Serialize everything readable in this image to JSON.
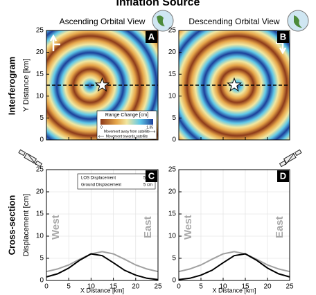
{
  "title": "Inflation Source",
  "row_labels": [
    "Interferogram",
    "Cross-section"
  ],
  "chart_data": [
    {
      "type": "interferogram",
      "title": "Ascending Orbital View",
      "panel": "A",
      "ylabel": "Y Distance [km]",
      "xlim": [
        0,
        25
      ],
      "ylim": [
        0,
        25
      ],
      "xticks": [
        0,
        5,
        10,
        15,
        20,
        25
      ],
      "yticks": [
        0,
        5,
        10,
        15,
        20,
        25
      ],
      "source": [
        12.5,
        12.5
      ],
      "profile_y": 12.5,
      "colorbar": {
        "title": "Range Change [cm]",
        "ticks": [
          0,
          1.35
        ],
        "labels": [
          "Movement away from satellite",
          "Movement towards satellite"
        ]
      }
    },
    {
      "type": "interferogram",
      "title": "Descending Orbital View",
      "panel": "B",
      "xlim": [
        0,
        25
      ],
      "ylim": [
        0,
        25
      ],
      "xticks": [
        0,
        5,
        10,
        15,
        20,
        25
      ],
      "yticks": [
        0,
        5,
        10,
        15,
        20,
        25
      ],
      "source": [
        12.5,
        12.5
      ],
      "profile_y": 12.5
    },
    {
      "type": "line",
      "panel": "C",
      "ylabel": "Displacement [cm]",
      "xlabel": "X Distance [km]",
      "xlim": [
        0,
        25
      ],
      "ylim": [
        0,
        25
      ],
      "xticks": [
        0,
        5,
        10,
        15,
        20,
        25
      ],
      "yticks": [
        0,
        5,
        10,
        15,
        20,
        25
      ],
      "west": "West",
      "east": "East",
      "legend": [
        "LOS Displacement",
        "5 cm",
        "Ground Displacement",
        "5 cm"
      ],
      "x": [
        0,
        2.5,
        5,
        7.5,
        10,
        12.5,
        15,
        17.5,
        20,
        22.5,
        25
      ],
      "series": [
        {
          "name": "Ground Displacement",
          "color": "#a0a0a0",
          "values": [
            2,
            2.6,
            3.5,
            4.8,
            6,
            6.5,
            6,
            4.8,
            3.5,
            2.6,
            2
          ]
        },
        {
          "name": "LOS Displacement",
          "color": "#000000",
          "values": [
            0.8,
            1.5,
            2.8,
            4.6,
            6,
            5.6,
            4,
            2.3,
            1.2,
            0.5,
            0.2
          ]
        }
      ]
    },
    {
      "type": "line",
      "panel": "D",
      "xlabel": "X Distance [km]",
      "xlim": [
        0,
        25
      ],
      "ylim": [
        0,
        25
      ],
      "xticks": [
        0,
        5,
        10,
        15,
        20,
        25
      ],
      "yticks": [
        0,
        5,
        10,
        15,
        20,
        25
      ],
      "west": "West",
      "east": "East",
      "x": [
        0,
        2.5,
        5,
        7.5,
        10,
        12.5,
        15,
        17.5,
        20,
        22.5,
        25
      ],
      "series": [
        {
          "name": "Ground Displacement",
          "color": "#a0a0a0",
          "values": [
            2,
            2.6,
            3.5,
            4.8,
            6,
            6.5,
            6,
            4.8,
            3.5,
            2.6,
            2
          ]
        },
        {
          "name": "LOS Displacement",
          "color": "#000000",
          "values": [
            0.2,
            0.5,
            1.2,
            2.3,
            4,
            5.6,
            6,
            4.6,
            2.8,
            1.5,
            0.8
          ]
        }
      ]
    }
  ]
}
